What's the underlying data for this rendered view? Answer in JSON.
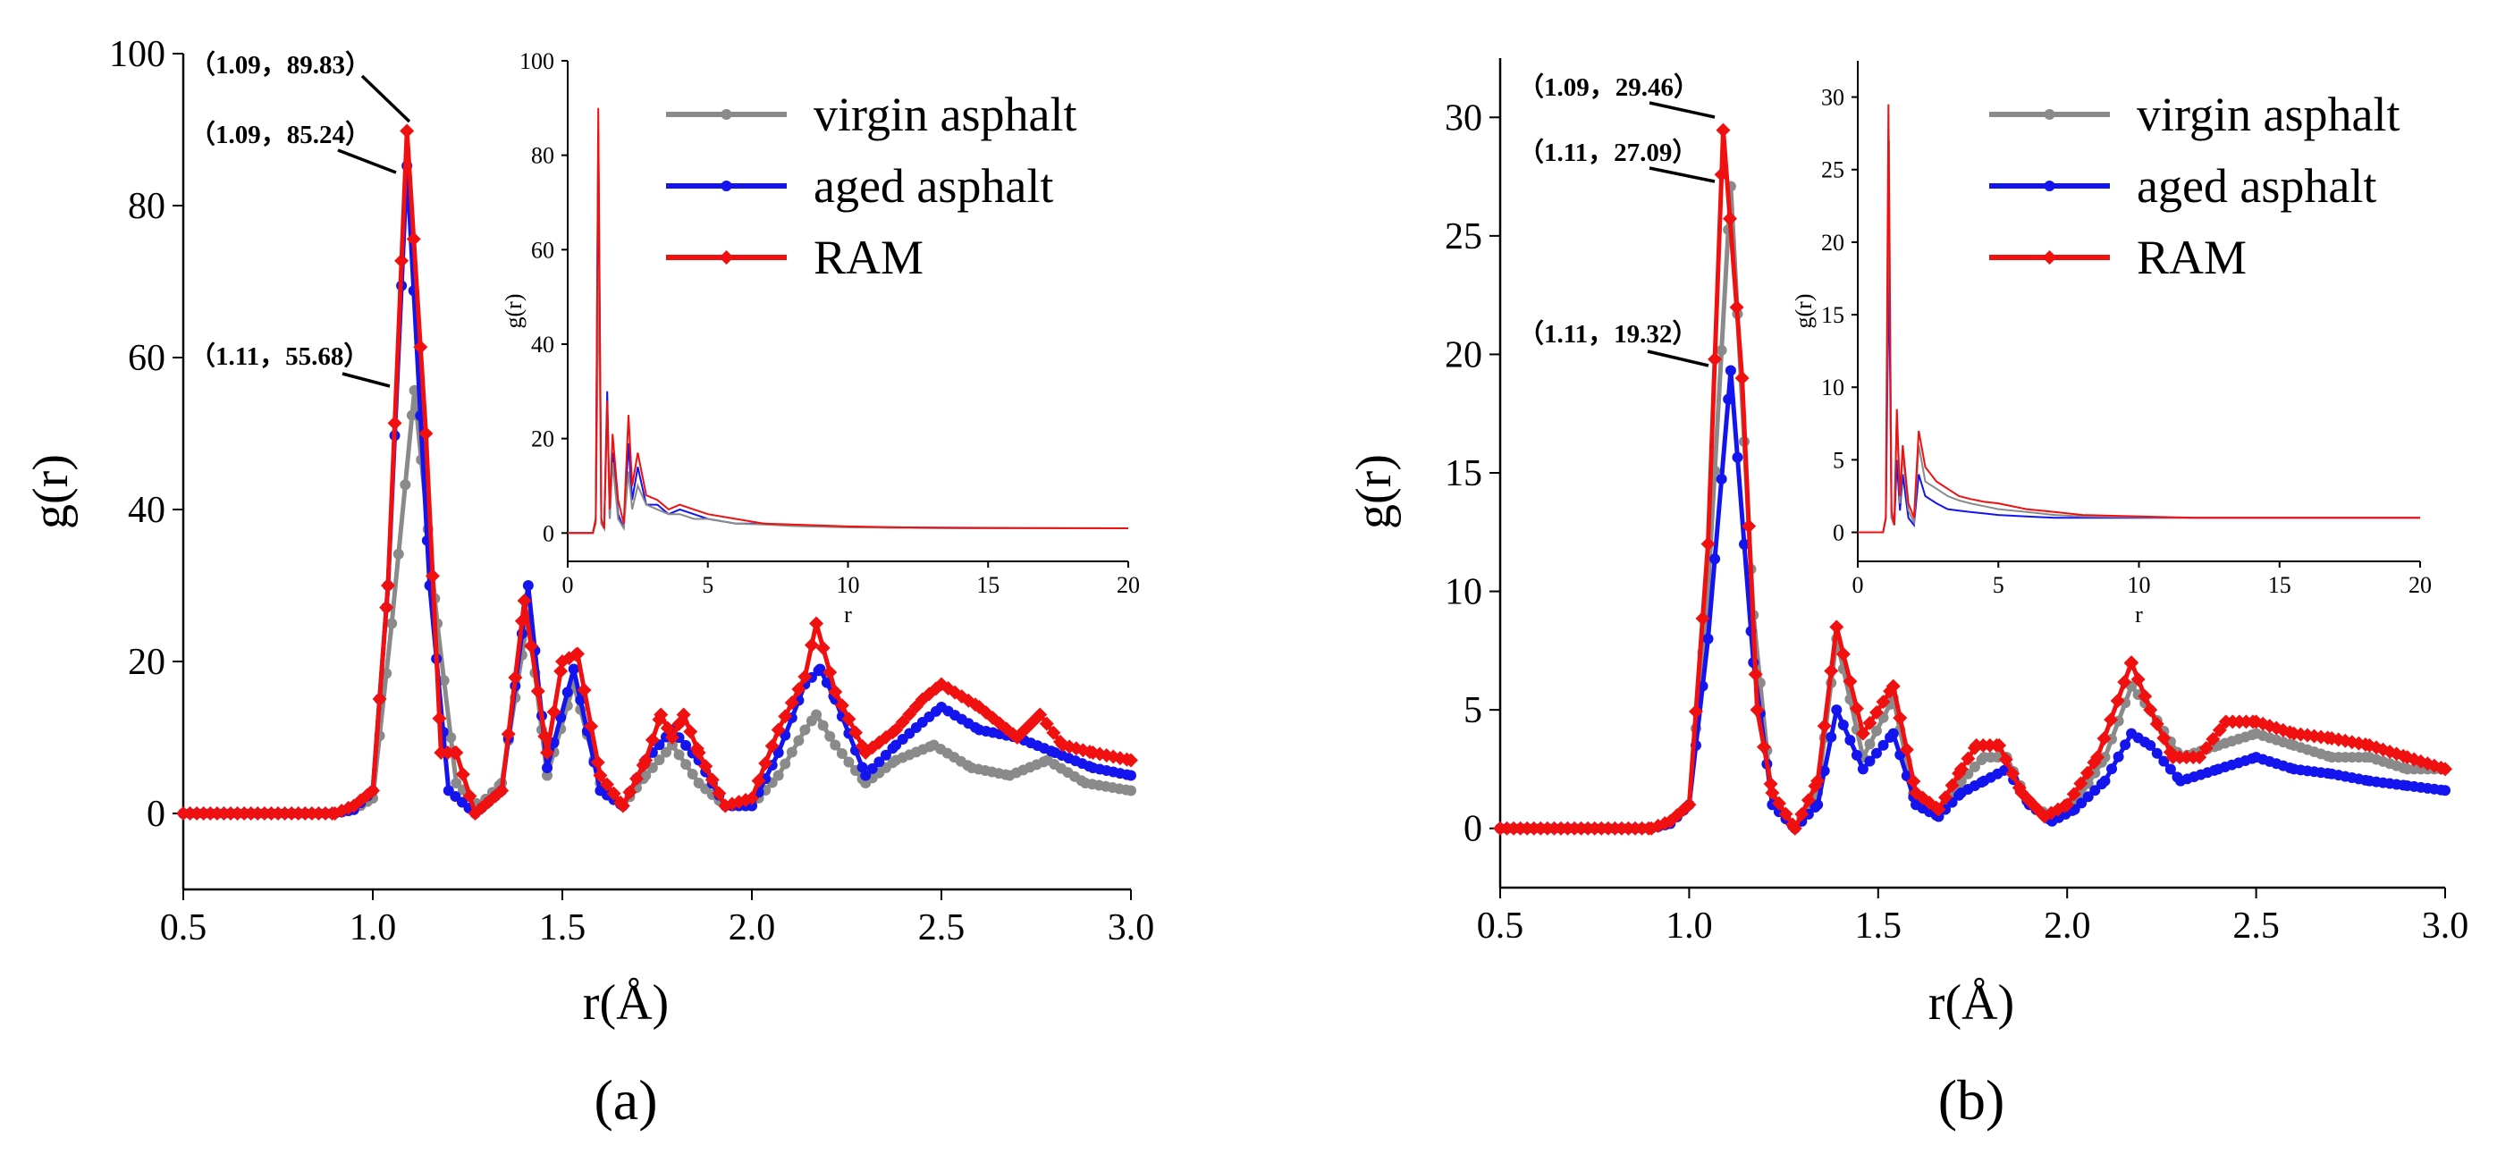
{
  "colors": {
    "virgin asphalt": "#8a8a8a",
    "aged asphalt": "#1414ee",
    "RAM": "#f01010"
  },
  "chart_data": [
    {
      "type": "line",
      "panel_label": "(a)",
      "xlabel": "r(Å)",
      "ylabel": "g(r)",
      "xlim": [
        0.5,
        3.0
      ],
      "ylim": [
        -10,
        100
      ],
      "xticks": [
        "0.5",
        "1.0",
        "1.5",
        "2.0",
        "2.5",
        "3.0"
      ],
      "yticks": [
        "0",
        "20",
        "40",
        "60",
        "80",
        "100"
      ],
      "legend": [
        "virgin asphalt",
        "aged asphalt",
        "RAM"
      ],
      "legend_position": "top-right",
      "annotations": [
        "（1.09，89.83）",
        "（1.09，85.24）",
        "（1.11，55.68）"
      ],
      "series": [
        {
          "name": "virgin asphalt",
          "marker": "circle",
          "x": [
            0.5,
            0.9,
            0.95,
            1.0,
            1.05,
            1.11,
            1.17,
            1.22,
            1.28,
            1.34,
            1.41,
            1.46,
            1.53,
            1.6,
            1.66,
            1.72,
            1.79,
            1.86,
            1.93,
            2.0,
            2.07,
            2.14,
            2.17,
            2.22,
            2.3,
            2.38,
            2.48,
            2.58,
            2.68,
            2.78,
            2.88,
            3.0
          ],
          "y": [
            0,
            0,
            0.5,
            2,
            25,
            55.68,
            25,
            4,
            1,
            4,
            26,
            5,
            17,
            4,
            1,
            5,
            9,
            4,
            1,
            1,
            5,
            11,
            13,
            9,
            4,
            7,
            9,
            6,
            5,
            7,
            4,
            3
          ]
        },
        {
          "name": "aged asphalt",
          "marker": "circle",
          "x": [
            0.5,
            0.9,
            0.95,
            1.0,
            1.04,
            1.09,
            1.15,
            1.2,
            1.27,
            1.34,
            1.41,
            1.46,
            1.53,
            1.6,
            1.66,
            1.72,
            1.79,
            1.86,
            1.93,
            2.0,
            2.07,
            2.14,
            2.18,
            2.22,
            2.3,
            2.38,
            2.45,
            2.5,
            2.6,
            2.7,
            2.8,
            2.9,
            3.0
          ],
          "y": [
            0,
            0,
            0.5,
            3,
            30,
            85.24,
            30,
            3,
            0,
            3,
            30,
            6,
            19,
            3,
            1,
            7,
            11,
            7,
            1,
            1,
            8,
            17,
            19,
            15,
            5,
            9,
            12,
            14,
            11,
            10,
            8,
            6,
            5
          ]
        },
        {
          "name": "RAM",
          "marker": "diamond",
          "x": [
            0.5,
            0.9,
            0.95,
            1.0,
            1.04,
            1.09,
            1.14,
            1.18,
            1.22,
            1.27,
            1.34,
            1.4,
            1.46,
            1.5,
            1.54,
            1.6,
            1.66,
            1.72,
            1.76,
            1.79,
            1.82,
            1.86,
            1.93,
            2.0,
            2.07,
            2.14,
            2.17,
            2.22,
            2.3,
            2.38,
            2.45,
            2.5,
            2.6,
            2.7,
            2.76,
            2.82,
            2.9,
            3.0
          ],
          "y": [
            0,
            0,
            1,
            3,
            30,
            89.83,
            50,
            8,
            8,
            0,
            3,
            28,
            8,
            20,
            21,
            5,
            1,
            7,
            13,
            10,
            13,
            8,
            1,
            2,
            11,
            18,
            25,
            16,
            8,
            11,
            15,
            17,
            14,
            10,
            13,
            9,
            8,
            7
          ]
        }
      ],
      "inset": {
        "xlabel": "r",
        "ylabel": "g(r)",
        "xlim": [
          0,
          20
        ],
        "ylim": [
          -6,
          100
        ],
        "xticks": [
          "0",
          "5",
          "10",
          "15",
          "20"
        ],
        "yticks": [
          "0",
          "20",
          "40",
          "60",
          "80",
          "100"
        ],
        "series": [
          {
            "name": "aged asphalt",
            "x": [
              0,
              0.9,
              1.0,
              1.09,
              1.2,
              1.3,
              1.41,
              1.5,
              1.6,
              1.8,
              2.0,
              2.17,
              2.3,
              2.5,
              2.8,
              3.2,
              3.6,
              4.0,
              4.5,
              5.0,
              6.0,
              7.0,
              8.0,
              10.0,
              12.0,
              15.0,
              20.0
            ],
            "y": [
              0,
              0,
              3,
              85,
              2,
              1,
              30,
              3,
              17,
              4,
              1,
              19,
              7,
              14,
              6,
              6,
              4,
              5,
              4,
              3,
              2,
              2,
              1.6,
              1.3,
              1.1,
              1.0,
              1.0
            ]
          },
          {
            "name": "virgin asphalt",
            "x": [
              0,
              0.9,
              1.0,
              1.11,
              1.2,
              1.3,
              1.41,
              1.5,
              1.6,
              1.8,
              2.0,
              2.17,
              2.3,
              2.5,
              2.8,
              3.2,
              3.6,
              4.0,
              4.5,
              5.0,
              6.0,
              7.0,
              8.0,
              10.0,
              12.0,
              15.0,
              20.0
            ],
            "y": [
              0,
              0,
              2,
              56,
              2,
              1,
              26,
              3,
              15,
              3,
              1,
              13,
              5,
              10,
              6,
              5,
              4,
              4,
              3,
              3,
              2,
              1.8,
              1.5,
              1.2,
              1.1,
              1.0,
              1.0
            ]
          },
          {
            "name": "RAM",
            "x": [
              0,
              0.9,
              1.0,
              1.09,
              1.2,
              1.3,
              1.41,
              1.5,
              1.6,
              1.8,
              2.0,
              2.17,
              2.3,
              2.5,
              2.8,
              3.2,
              3.6,
              4.0,
              4.5,
              5.0,
              6.0,
              7.0,
              8.0,
              10.0,
              12.0,
              15.0,
              20.0
            ],
            "y": [
              0,
              0,
              3,
              90,
              3,
              1,
              28,
              5,
              21,
              7,
              2,
              25,
              10,
              17,
              8,
              7,
              5,
              6,
              5,
              4,
              3,
              2,
              1.8,
              1.4,
              1.2,
              1.1,
              1.0
            ]
          }
        ]
      }
    },
    {
      "type": "line",
      "panel_label": "(b)",
      "xlabel": "r(Å)",
      "ylabel": "g(r)",
      "xlim": [
        0.5,
        3.0
      ],
      "ylim": [
        -2.5,
        32.5
      ],
      "xticks": [
        "0.5",
        "1.0",
        "1.5",
        "2.0",
        "2.5",
        "3.0"
      ],
      "yticks": [
        "0",
        "5",
        "10",
        "15",
        "20",
        "25",
        "30"
      ],
      "legend": [
        "virgin asphalt",
        "aged asphalt",
        "RAM"
      ],
      "legend_position": "top-right",
      "annotations": [
        "（1.09，29.46）",
        "（1.11，27.09）",
        "（1.11，19.32）"
      ],
      "series": [
        {
          "name": "virgin asphalt",
          "marker": "circle",
          "x": [
            0.5,
            0.9,
            0.95,
            1.0,
            1.05,
            1.11,
            1.17,
            1.22,
            1.28,
            1.34,
            1.39,
            1.46,
            1.54,
            1.6,
            1.66,
            1.72,
            1.78,
            1.84,
            1.9,
            1.96,
            2.02,
            2.1,
            2.17,
            2.22,
            2.3,
            2.4,
            2.5,
            2.6,
            2.7,
            2.8,
            2.9,
            3.0
          ],
          "y": [
            0,
            0,
            0.2,
            1,
            10,
            27.09,
            9,
            1,
            0,
            1.5,
            8,
            3,
            5.5,
            1,
            0.5,
            2,
            3,
            3,
            1,
            0.5,
            1,
            3,
            6,
            5,
            3,
            3.5,
            4,
            3.5,
            3,
            3,
            2.5,
            2.5
          ]
        },
        {
          "name": "aged asphalt",
          "marker": "circle",
          "x": [
            0.5,
            0.9,
            0.95,
            1.0,
            1.05,
            1.11,
            1.17,
            1.22,
            1.28,
            1.34,
            1.39,
            1.46,
            1.54,
            1.6,
            1.66,
            1.72,
            1.78,
            1.84,
            1.9,
            1.96,
            2.02,
            2.1,
            2.17,
            2.22,
            2.3,
            2.4,
            2.5,
            2.6,
            2.7,
            2.8,
            2.9,
            3.0
          ],
          "y": [
            0,
            0,
            0.2,
            1,
            8,
            19.32,
            7,
            1,
            0,
            1,
            5,
            2.5,
            4,
            1,
            0.5,
            1.5,
            2,
            2.5,
            1,
            0.3,
            0.8,
            2,
            4,
            3.5,
            2,
            2.5,
            3,
            2.5,
            2.3,
            2,
            1.8,
            1.6
          ]
        },
        {
          "name": "RAM",
          "marker": "diamond",
          "x": [
            0.5,
            0.9,
            0.95,
            1.0,
            1.05,
            1.09,
            1.14,
            1.18,
            1.22,
            1.28,
            1.34,
            1.39,
            1.46,
            1.54,
            1.6,
            1.66,
            1.72,
            1.76,
            1.82,
            1.88,
            1.94,
            2.0,
            2.08,
            2.17,
            2.22,
            2.28,
            2.35,
            2.42,
            2.5,
            2.6,
            2.7,
            2.8,
            2.9,
            3.0
          ],
          "y": [
            0,
            0,
            0.3,
            1,
            12,
            29.46,
            19,
            5,
            1.5,
            0,
            2,
            8.5,
            4,
            6,
            1.5,
            0.8,
            2.5,
            3.5,
            3.5,
            1.5,
            0.5,
            1,
            3,
            7,
            5,
            3,
            3,
            4.5,
            4.5,
            4,
            3.8,
            3.5,
            3,
            2.5
          ]
        }
      ],
      "inset": {
        "xlabel": "r",
        "ylabel": "g(r)",
        "xlim": [
          0,
          20
        ],
        "ylim": [
          -2,
          32.5
        ],
        "xticks": [
          "0",
          "5",
          "10",
          "15",
          "20"
        ],
        "yticks": [
          "0",
          "5",
          "10",
          "15",
          "20",
          "25",
          "30"
        ],
        "series": [
          {
            "name": "aged asphalt",
            "x": [
              0,
              0.9,
              1.0,
              1.11,
              1.2,
              1.3,
              1.39,
              1.5,
              1.6,
              1.8,
              2.0,
              2.17,
              2.4,
              2.8,
              3.2,
              3.6,
              4.0,
              4.5,
              5.0,
              6.0,
              7.0,
              8.0,
              10.0,
              12.0,
              15.0,
              20.0
            ],
            "y": [
              0,
              0,
              1,
              19,
              1,
              0.5,
              5,
              1.5,
              4,
              1,
              0.5,
              4,
              2.5,
              2,
              1.6,
              1.5,
              1.4,
              1.3,
              1.2,
              1.1,
              1.0,
              1.0,
              1.0,
              1.0,
              1.0,
              1.0
            ]
          },
          {
            "name": "virgin asphalt",
            "x": [
              0,
              0.9,
              1.0,
              1.11,
              1.2,
              1.3,
              1.39,
              1.5,
              1.6,
              1.8,
              2.0,
              2.17,
              2.4,
              2.8,
              3.2,
              3.6,
              4.0,
              4.5,
              5.0,
              6.0,
              7.0,
              8.0,
              10.0,
              12.0,
              15.0,
              20.0
            ],
            "y": [
              0,
              0,
              1,
              27,
              1,
              0.5,
              8,
              2,
              5.5,
              1.5,
              0.7,
              6,
              3.5,
              3,
              2.5,
              2.2,
              2.0,
              1.8,
              1.6,
              1.4,
              1.2,
              1.1,
              1.05,
              1.0,
              1.0,
              1.0
            ]
          },
          {
            "name": "RAM",
            "x": [
              0,
              0.9,
              1.0,
              1.09,
              1.2,
              1.3,
              1.39,
              1.5,
              1.6,
              1.8,
              2.0,
              2.17,
              2.4,
              2.8,
              3.2,
              3.6,
              4.0,
              4.5,
              5.0,
              6.0,
              7.0,
              8.0,
              10.0,
              12.0,
              15.0,
              20.0
            ],
            "y": [
              0,
              0,
              1,
              29.5,
              1.5,
              0.5,
              8.5,
              2.5,
              6,
              2,
              1,
              7,
              4.5,
              3.5,
              3,
              2.5,
              2.3,
              2.1,
              2.0,
              1.6,
              1.4,
              1.2,
              1.1,
              1.0,
              1.0,
              1.0
            ]
          }
        ]
      }
    }
  ]
}
